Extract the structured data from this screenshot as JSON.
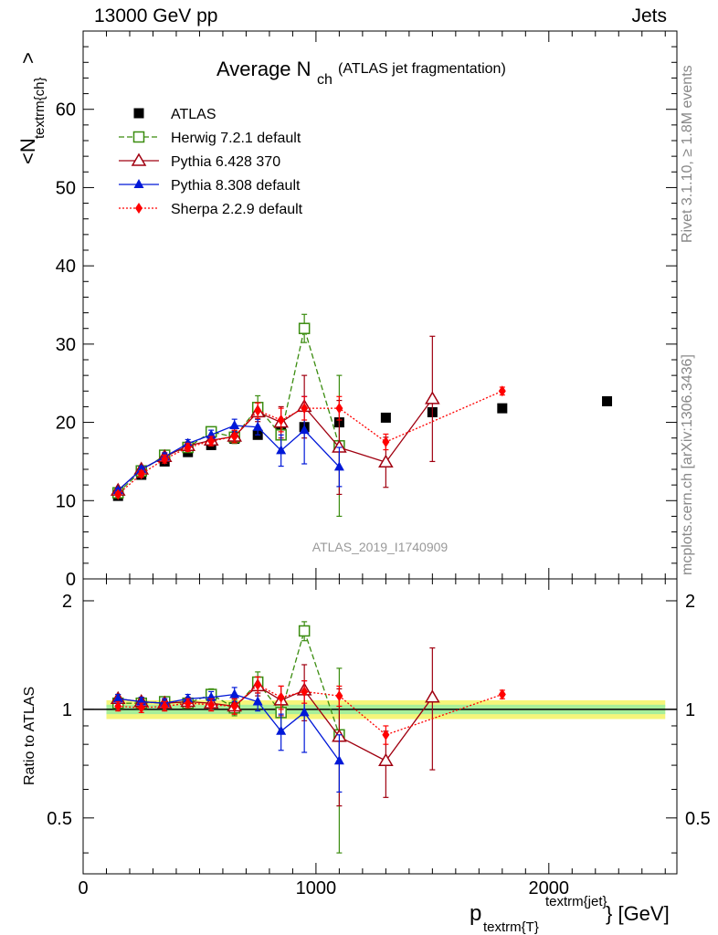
{
  "header": {
    "energy": "13000 GeV pp",
    "category": "Jets"
  },
  "side": {
    "rivet": "Rivet 3.1.10, ≥ 1.8M events",
    "mcplots": "mcplots.cern.ch [arXiv:1306.3436]"
  },
  "chart_data": [
    {
      "type": "scatter",
      "title_main": "Average N",
      "title_sub": "ch",
      "title_extra": "(ATLAS jet fragmentation)",
      "ylabel": "<N",
      "ylabel_sub": "textrm{ch}",
      "ylabel_close": ">",
      "analysis_id": "ATLAS_2019_I1740909",
      "xlim": [
        0,
        2550
      ],
      "ylim": [
        0,
        70
      ],
      "yticks": [
        0,
        10,
        20,
        30,
        40,
        50,
        60
      ],
      "legend_position": "top-left",
      "series": [
        {
          "name": "ATLAS",
          "color": "#000000",
          "marker": "filled-square",
          "style": "none",
          "x": [
            150,
            250,
            350,
            450,
            550,
            650,
            750,
            850,
            950,
            1100,
            1300,
            1500,
            1800,
            2250
          ],
          "y": [
            10.6,
            13.3,
            15.0,
            16.2,
            17.1,
            17.9,
            18.4,
            18.8,
            19.4,
            20.0,
            20.6,
            21.3,
            21.8,
            22.7
          ]
        },
        {
          "name": "Herwig 7.2.1 default",
          "color": "#3a8c0f",
          "marker": "open-square",
          "style": "dashed",
          "x": [
            150,
            250,
            350,
            450,
            550,
            650,
            750,
            850,
            950,
            1100
          ],
          "y": [
            11.0,
            13.8,
            15.8,
            16.8,
            18.8,
            18.1,
            21.9,
            18.4,
            32.0,
            17.0
          ],
          "err": [
            0.3,
            0.4,
            0.5,
            0.5,
            0.6,
            0.8,
            1.5,
            2.0,
            1.8,
            9.0
          ]
        },
        {
          "name": "Pythia 6.428 370",
          "color": "#a00010",
          "marker": "open-triangle",
          "style": "solid",
          "x": [
            150,
            250,
            350,
            450,
            550,
            650,
            750,
            850,
            950,
            1100,
            1300,
            1500
          ],
          "y": [
            11.3,
            14.0,
            15.6,
            17.0,
            17.7,
            18.2,
            21.3,
            20.0,
            22.0,
            16.8,
            14.9,
            23.0
          ],
          "err": [
            0.3,
            0.4,
            0.5,
            0.5,
            0.6,
            0.8,
            1.2,
            2.0,
            4.0,
            6.0,
            3.2,
            8.0
          ]
        },
        {
          "name": "Pythia 8.308 default",
          "color": "#0018d8",
          "marker": "filled-triangle",
          "style": "solid",
          "x": [
            150,
            250,
            350,
            450,
            550,
            650,
            750,
            850,
            950,
            1100
          ],
          "y": [
            11.3,
            14.0,
            15.6,
            17.3,
            18.4,
            19.6,
            19.4,
            16.4,
            19.0,
            14.3
          ],
          "err": [
            0.3,
            0.4,
            0.5,
            0.5,
            0.6,
            0.8,
            1.0,
            2.0,
            4.3,
            2.5
          ]
        },
        {
          "name": "Sherpa 2.2.9 default",
          "color": "#ff0000",
          "marker": "filled-diamond",
          "style": "dotted",
          "x": [
            150,
            250,
            350,
            450,
            550,
            650,
            750,
            850,
            950,
            1100,
            1300,
            1800
          ],
          "y": [
            10.8,
            13.4,
            15.3,
            16.8,
            17.6,
            18.2,
            21.5,
            20.3,
            21.8,
            21.8,
            17.5,
            24.0
          ],
          "err": [
            0.3,
            0.4,
            0.5,
            0.5,
            0.6,
            0.8,
            1.0,
            1.5,
            1.5,
            1.5,
            1.0,
            0.5
          ]
        }
      ]
    },
    {
      "type": "scatter",
      "ylabel": "Ratio to ATLAS",
      "xlabel": "p",
      "xlabel_sub": "textrm{T}",
      "xlabel_sup": "textrm{jet}",
      "xlabel_unit": "} [GeV]",
      "xlim": [
        0,
        2550
      ],
      "ylim": [
        0.35,
        2.3
      ],
      "yticks": [
        0.5,
        1,
        2
      ],
      "ytick_labels": [
        "0.5",
        "1",
        "2"
      ],
      "xticks": [
        0,
        1000,
        2000
      ],
      "xtick_labels": [
        "0",
        "1000",
        "2000"
      ],
      "band_colors": {
        "inner": "#a6ee9a",
        "outer": "#f5f57a"
      },
      "series": [
        {
          "name": "Herwig 7.2.1 default",
          "color": "#3a8c0f",
          "x": [
            150,
            250,
            350,
            450,
            550,
            650,
            750,
            850,
            950,
            1100
          ],
          "y": [
            1.04,
            1.04,
            1.05,
            1.04,
            1.1,
            1.01,
            1.19,
            0.98,
            1.65,
            0.85
          ],
          "err": [
            0.03,
            0.03,
            0.03,
            0.03,
            0.04,
            0.05,
            0.08,
            0.1,
            0.1,
            0.45
          ]
        },
        {
          "name": "Pythia 6.428 370",
          "color": "#a00010",
          "x": [
            150,
            250,
            350,
            450,
            550,
            650,
            750,
            850,
            950,
            1100,
            1300,
            1500
          ],
          "y": [
            1.07,
            1.05,
            1.04,
            1.05,
            1.04,
            1.02,
            1.16,
            1.06,
            1.13,
            0.84,
            0.72,
            1.08
          ],
          "err": [
            0.03,
            0.03,
            0.03,
            0.03,
            0.04,
            0.05,
            0.07,
            0.1,
            0.2,
            0.3,
            0.15,
            0.4
          ]
        },
        {
          "name": "Pythia 8.308 default",
          "color": "#0018d8",
          "x": [
            150,
            250,
            350,
            450,
            550,
            650,
            750,
            850,
            950,
            1100
          ],
          "y": [
            1.07,
            1.05,
            1.04,
            1.07,
            1.08,
            1.1,
            1.05,
            0.87,
            0.98,
            0.72
          ],
          "err": [
            0.03,
            0.03,
            0.03,
            0.03,
            0.04,
            0.05,
            0.06,
            0.1,
            0.22,
            0.13
          ]
        },
        {
          "name": "Sherpa 2.2.9 default",
          "color": "#ff0000",
          "x": [
            150,
            250,
            350,
            450,
            550,
            650,
            750,
            850,
            950,
            1100,
            1300,
            1800
          ],
          "y": [
            1.02,
            1.01,
            1.02,
            1.04,
            1.03,
            1.02,
            1.17,
            1.08,
            1.12,
            1.09,
            0.85,
            1.1
          ],
          "err": [
            0.03,
            0.03,
            0.03,
            0.03,
            0.04,
            0.05,
            0.06,
            0.08,
            0.08,
            0.07,
            0.05,
            0.03
          ]
        }
      ]
    }
  ]
}
